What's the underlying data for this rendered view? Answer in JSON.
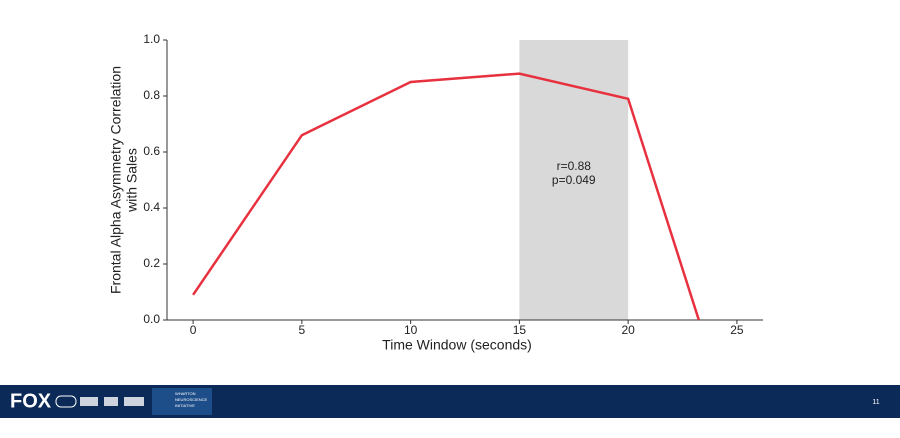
{
  "chart_data": {
    "type": "line",
    "xlabel": "Time Window (seconds)",
    "ylabel": [
      "Frontal Alpha Asymmetry Correlation",
      "with Sales"
    ],
    "x": [
      0,
      5,
      10,
      15,
      20,
      23.25
    ],
    "series": [
      {
        "color": "#e8313f",
        "values": [
          0.09,
          0.66,
          0.85,
          0.88,
          0.79,
          0.0
        ]
      }
    ],
    "xlim": [
      -1.2,
      26.2
    ],
    "ylim": [
      0,
      1
    ],
    "xticks": [
      0,
      5,
      10,
      15,
      20,
      25
    ],
    "yticks": [
      {
        "value": 0,
        "label": "0.0"
      },
      0.2,
      0.4,
      0.6,
      0.8,
      {
        "value": 1,
        "label": "1.0"
      }
    ],
    "shaded_region": {
      "x": [
        15,
        20
      ],
      "color": "#d9d9d9"
    },
    "annotation": {
      "x": 17.5,
      "y": 0.5,
      "lines": [
        "r=0.88",
        "p=0.049"
      ]
    }
  },
  "footer": {
    "logo": "FOX",
    "partner": [
      "WHARTON",
      "NEUROSCIENCE",
      "INITIATIVE"
    ],
    "page_number": "11"
  }
}
